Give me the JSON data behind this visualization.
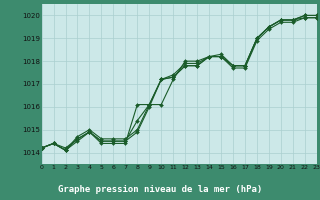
{
  "title": "Graphe pression niveau de la mer (hPa)",
  "bg_color": "#cce8e8",
  "plot_bg_color": "#cce8e8",
  "footer_bg_color": "#3d8b6e",
  "grid_color": "#aacfcf",
  "line_color": "#1a5c2a",
  "xlim": [
    0,
    23
  ],
  "ylim": [
    1013.5,
    1020.5
  ],
  "xticks": [
    0,
    1,
    2,
    3,
    4,
    5,
    6,
    7,
    8,
    9,
    10,
    11,
    12,
    13,
    14,
    15,
    16,
    17,
    18,
    19,
    20,
    21,
    22,
    23
  ],
  "yticks": [
    1014,
    1015,
    1016,
    1017,
    1018,
    1019,
    1020
  ],
  "series1_x": [
    0,
    1,
    2,
    3,
    4,
    5,
    6,
    7,
    8,
    9,
    10,
    11,
    12,
    13,
    14,
    15,
    16,
    17,
    18,
    19,
    20,
    21,
    22,
    23
  ],
  "series1_y": [
    1014.2,
    1014.4,
    1014.2,
    1014.6,
    1014.9,
    1014.5,
    1014.5,
    1014.5,
    1014.9,
    1016.0,
    1017.2,
    1017.3,
    1017.8,
    1017.8,
    1018.2,
    1018.2,
    1017.8,
    1017.8,
    1019.0,
    1019.5,
    1019.8,
    1019.8,
    1019.9,
    1019.9
  ],
  "series2_x": [
    0,
    1,
    2,
    3,
    4,
    5,
    6,
    7,
    8,
    9,
    10,
    11,
    12,
    13,
    14,
    15,
    16,
    17,
    18,
    19,
    20,
    21,
    22,
    23
  ],
  "series2_y": [
    1014.2,
    1014.4,
    1014.1,
    1014.6,
    1014.9,
    1014.5,
    1014.5,
    1014.5,
    1015.4,
    1016.1,
    1017.2,
    1017.3,
    1017.8,
    1017.8,
    1018.2,
    1018.2,
    1017.8,
    1017.8,
    1019.0,
    1019.5,
    1019.8,
    1019.8,
    1020.0,
    1020.0
  ],
  "series3_x": [
    0,
    1,
    2,
    3,
    4,
    5,
    6,
    7,
    8,
    9,
    10,
    11,
    12,
    13,
    14,
    15,
    16,
    17,
    18,
    19,
    20,
    21,
    22,
    23
  ],
  "series3_y": [
    1014.2,
    1014.4,
    1014.1,
    1014.7,
    1015.0,
    1014.6,
    1014.6,
    1014.6,
    1015.0,
    1016.1,
    1017.2,
    1017.4,
    1017.9,
    1017.9,
    1018.2,
    1018.3,
    1017.8,
    1017.8,
    1019.0,
    1019.5,
    1019.8,
    1019.8,
    1020.0,
    1020.0
  ],
  "series4_x": [
    0,
    1,
    2,
    3,
    4,
    5,
    6,
    7,
    8,
    9,
    10,
    11,
    12,
    13,
    14,
    15,
    16,
    17,
    18,
    19,
    20,
    21,
    22,
    23
  ],
  "series4_y": [
    1014.2,
    1014.4,
    1014.1,
    1014.5,
    1014.9,
    1014.4,
    1014.4,
    1014.4,
    1016.1,
    1016.1,
    1016.1,
    1017.2,
    1018.0,
    1018.0,
    1018.2,
    1018.2,
    1017.7,
    1017.7,
    1018.9,
    1019.4,
    1019.7,
    1019.7,
    1019.9,
    1019.9
  ]
}
